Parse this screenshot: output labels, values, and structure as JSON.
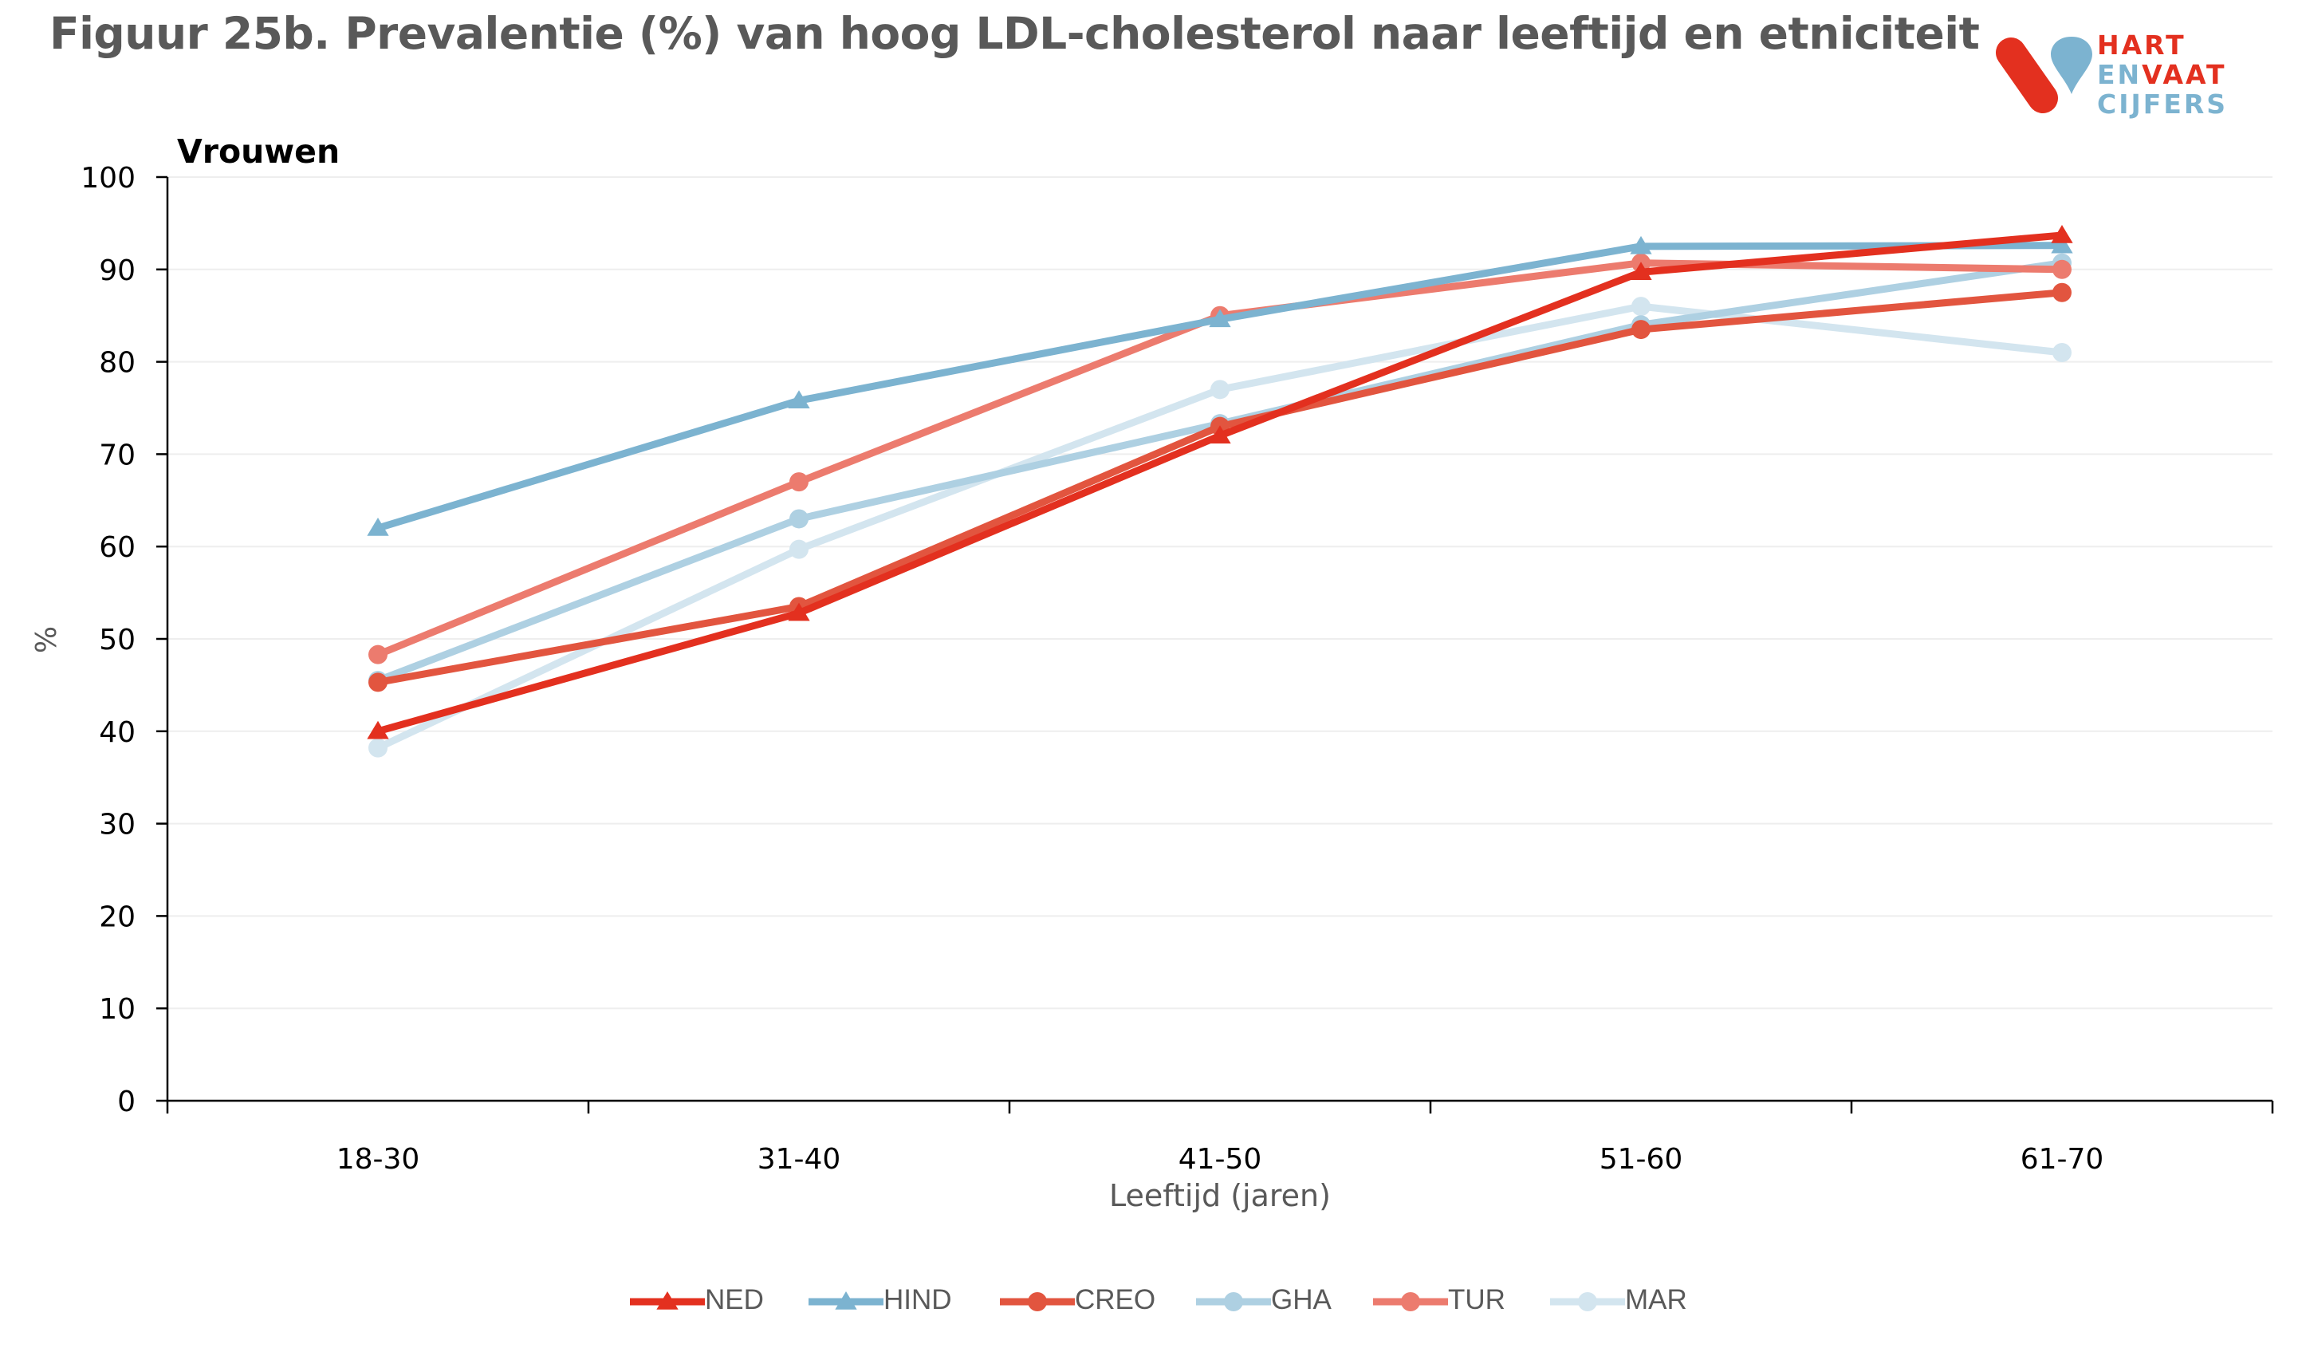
{
  "title": "Figuur 25b. Prevalentie (%) van  hoog LDL-cholesterol naar leeftijd en etniciteit",
  "panel_label": "Vrouwen",
  "logo": {
    "line1": "HART",
    "line2a": "EN",
    "line2b": "VAAT",
    "line3": "CIJFERS"
  },
  "colors": {
    "NED": "#e3301f",
    "HIND": "#7cb3d0",
    "CREO": "#e2553f",
    "GHA": "#aed0e2",
    "TUR": "#ec7b6e",
    "MAR": "#d3e5ef",
    "axis": "#000000",
    "grid": "#eeeeee",
    "text": "#595959"
  },
  "chart_data": {
    "type": "line",
    "categories": [
      "18-30",
      "31-40",
      "41-50",
      "51-60",
      "61-70"
    ],
    "xlabel": "Leeftijd (jaren)",
    "ylabel": "%",
    "ylim": [
      0,
      100
    ],
    "yticks": [
      0,
      10,
      20,
      30,
      40,
      50,
      60,
      70,
      80,
      90,
      100
    ],
    "grid": true,
    "legend": "bottom",
    "series": [
      {
        "name": "NED",
        "marker": "triangle",
        "values": [
          40.0,
          52.8,
          72.0,
          89.7,
          93.7
        ]
      },
      {
        "name": "HIND",
        "marker": "triangle",
        "values": [
          62.0,
          75.8,
          84.6,
          92.5,
          92.6
        ]
      },
      {
        "name": "CREO",
        "marker": "circle",
        "values": [
          45.3,
          53.5,
          73.0,
          83.5,
          87.5
        ]
      },
      {
        "name": "GHA",
        "marker": "circle",
        "values": [
          45.5,
          63.0,
          73.3,
          84.0,
          90.7
        ]
      },
      {
        "name": "TUR",
        "marker": "circle",
        "values": [
          48.3,
          67.0,
          85.0,
          90.7,
          90.0
        ]
      },
      {
        "name": "MAR",
        "marker": "circle",
        "values": [
          38.2,
          59.7,
          77.0,
          86.0,
          81.0
        ]
      }
    ]
  }
}
